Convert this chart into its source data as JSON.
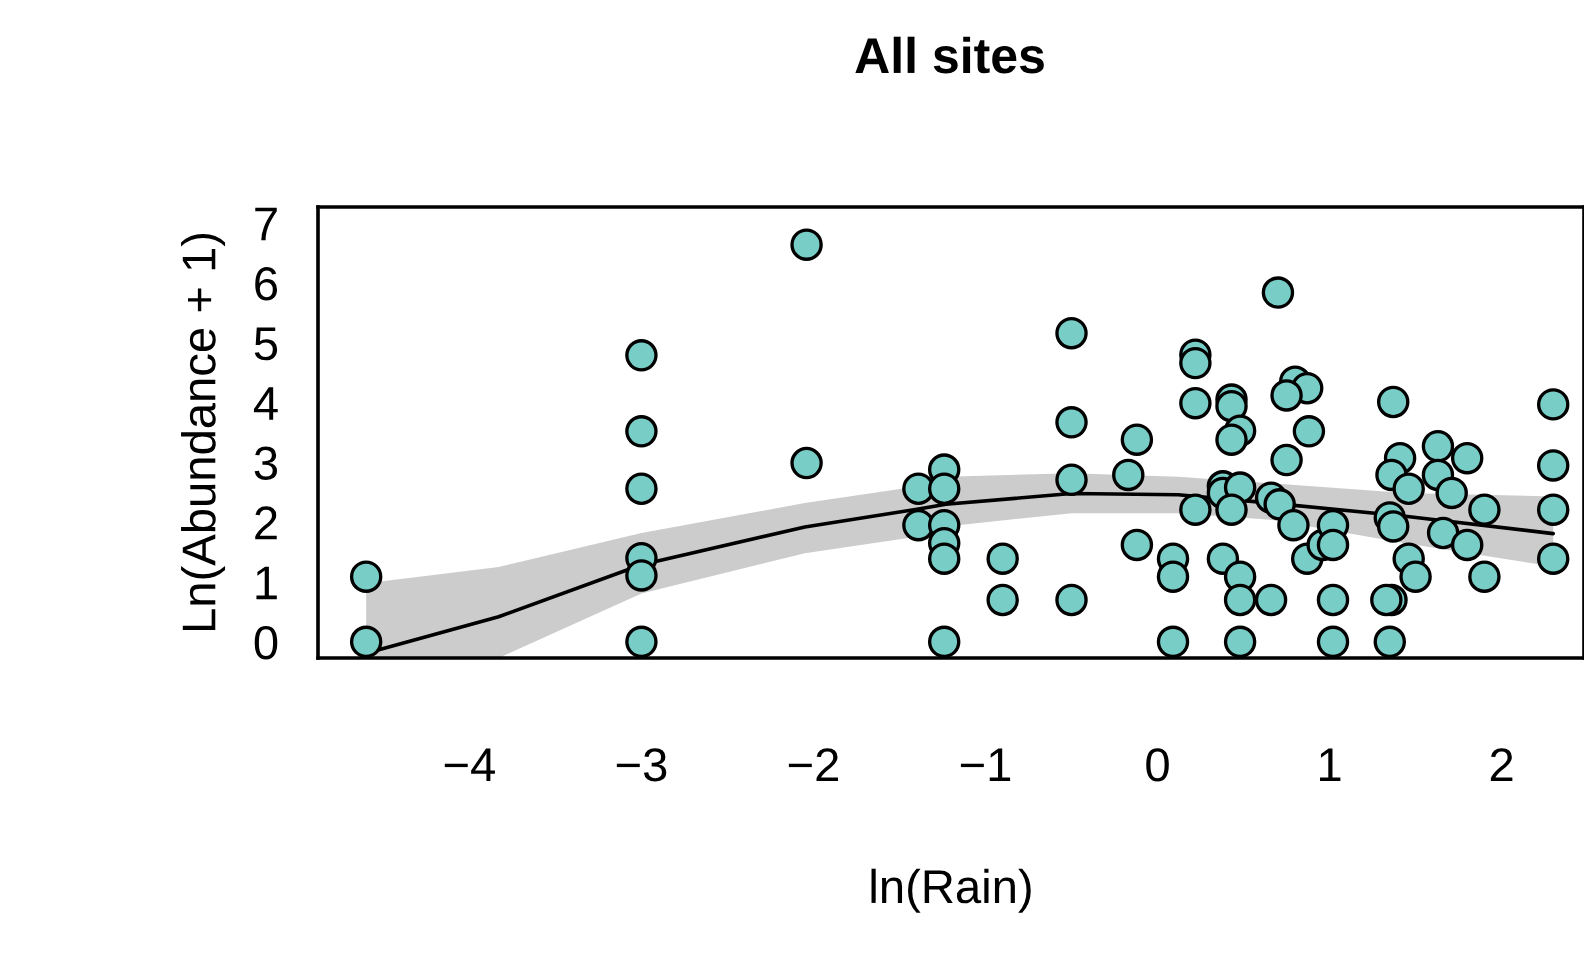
{
  "chart_data": {
    "type": "scatter",
    "title": "All sites",
    "xlabel": "ln(Rain)",
    "ylabel": "Ln(Abundance + 1)",
    "xlim": [
      -4.88,
      2.479
    ],
    "ylim": [
      -0.27,
      7.27
    ],
    "xticks": [
      {
        "value": -4,
        "label": "−4"
      },
      {
        "value": -3,
        "label": "−3"
      },
      {
        "value": -2,
        "label": "−2"
      },
      {
        "value": -1,
        "label": "−1"
      },
      0,
      1,
      2
    ],
    "yticks": [
      0,
      1,
      2,
      3,
      4,
      5,
      6,
      7
    ],
    "grid": false,
    "marker": "circle",
    "series": [
      {
        "type": "line",
        "color": "#000000",
        "x": [
          -4.6,
          -3.83,
          -3.0,
          -2.05,
          -1.39,
          -1.23,
          -0.5,
          0.12,
          0.66,
          1.44,
          2.3
        ],
        "values": [
          -0.19,
          0.42,
          1.29,
          1.92,
          2.22,
          2.3,
          2.48,
          2.46,
          2.32,
          2.1,
          1.81
        ],
        "lower": [
          -0.27,
          -0.27,
          0.81,
          1.48,
          1.76,
          1.93,
          2.15,
          2.15,
          2.04,
          1.65,
          1.26
        ],
        "upper": [
          0.98,
          1.25,
          1.82,
          2.32,
          2.6,
          2.76,
          2.82,
          2.76,
          2.65,
          2.49,
          2.43
        ],
        "marker": "none"
      },
      {
        "color": "#79cdc7",
        "x": [
          -4.6,
          -4.6,
          -3.0,
          -3.0,
          -3.0,
          -3.0,
          -3.0,
          -3.0,
          -2.04,
          -2.04,
          -1.39,
          -1.39,
          -1.24,
          -1.24,
          -1.24,
          -1.24,
          -1.24,
          -1.24,
          -0.9,
          -0.9,
          -0.5,
          -0.5,
          -0.5,
          -0.5,
          -0.12,
          -0.17,
          -0.12,
          0.09,
          0.09,
          0.09,
          0.22,
          0.22,
          0.22,
          0.22,
          0.38,
          0.38,
          0.38,
          0.43,
          0.43,
          0.48,
          0.43,
          0.48,
          0.43,
          0.48,
          0.48,
          0.48,
          0.66,
          0.71,
          0.66,
          0.7,
          0.8,
          0.87,
          0.75,
          0.88,
          0.75,
          0.79,
          0.87,
          0.96,
          1.02,
          1.02,
          1.02,
          1.02,
          1.37,
          1.41,
          1.36,
          1.46,
          1.35,
          1.37,
          1.46,
          1.5,
          1.36,
          1.33,
          1.35,
          1.63,
          1.63,
          1.71,
          1.8,
          1.66,
          1.8,
          1.9,
          1.9,
          2.3,
          2.3,
          2.3,
          2.3
        ],
        "values": [
          1.09,
          0,
          4.79,
          3.52,
          2.56,
          1.4,
          1.11,
          0,
          6.64,
          2.99,
          2.56,
          1.95,
          2.88,
          2.56,
          1.95,
          1.65,
          1.39,
          0,
          1.39,
          0.7,
          5.16,
          3.67,
          2.71,
          0.7,
          3.38,
          2.79,
          1.62,
          1.39,
          1.09,
          0,
          4.8,
          4.66,
          3.99,
          2.21,
          2.6,
          2.49,
          1.39,
          4.05,
          3.94,
          3.53,
          3.38,
          2.58,
          2.21,
          1.09,
          0.7,
          0,
          2.41,
          2.3,
          0.7,
          5.84,
          4.35,
          4.24,
          4.12,
          3.52,
          3.04,
          1.95,
          1.39,
          1.62,
          1.95,
          1.62,
          0.7,
          0,
          4.01,
          3.07,
          2.79,
          2.56,
          2.08,
          1.93,
          1.39,
          1.09,
          0.7,
          0.7,
          0,
          3.27,
          2.79,
          2.49,
          3.07,
          1.82,
          1.62,
          2.21,
          1.09,
          3.97,
          2.95,
          2.21,
          1.39
        ]
      }
    ]
  }
}
